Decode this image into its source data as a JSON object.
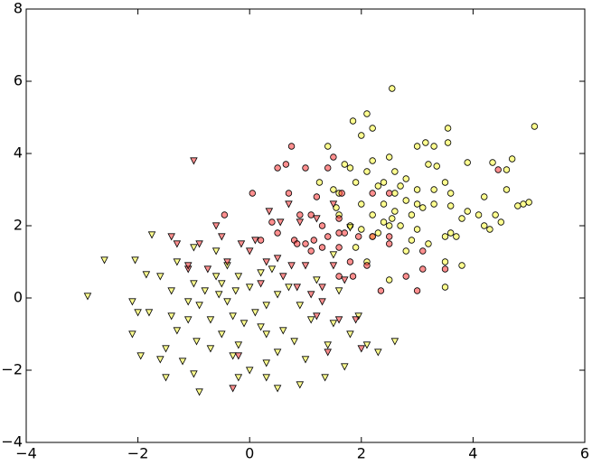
{
  "chart_data": {
    "type": "scatter",
    "xlim": [
      -4,
      6
    ],
    "ylim": [
      -4,
      8
    ],
    "xticks": [
      {
        "value": -4,
        "label": "−4"
      },
      {
        "value": -2,
        "label": "−2"
      },
      0,
      2,
      4,
      6
    ],
    "yticks": [
      {
        "value": -4,
        "label": "−4"
      },
      {
        "value": -2,
        "label": "−2"
      },
      0,
      2,
      4,
      6,
      8
    ],
    "series": [
      {
        "marker": "circle",
        "color": "#ffff33",
        "x": [
          2.55,
          5.1,
          2.1,
          1.85,
          2.0,
          2.2,
          3.55,
          1.4,
          3.0,
          3.15,
          3.3,
          3.55,
          4.35,
          4.7,
          3.9,
          4.6,
          1.7,
          1.8,
          2.2,
          2.5,
          2.1,
          2.6,
          3.2,
          3.35,
          3.5,
          1.25,
          1.5,
          1.6,
          1.9,
          2.3,
          2.4,
          2.8,
          3.0,
          3.3,
          3.6,
          3.9,
          4.1,
          4.2,
          4.6,
          4.9,
          4.8,
          5.0,
          4.5,
          4.4,
          3.8,
          3.6,
          3.3,
          3.1,
          2.9,
          2.6,
          2.4,
          2.2,
          2.5,
          2.7,
          2.3,
          2.0,
          1.8,
          1.6,
          1.55,
          2.8,
          3.0,
          2.9,
          3.2,
          3.5,
          3.8,
          3.5,
          3.6,
          2.5,
          3.5,
          2.1,
          2.2,
          3.0,
          4.2,
          3.7,
          2.6,
          2.7,
          2.0,
          2.4,
          2.55,
          2.8,
          1.9,
          4.3
        ],
        "y": [
          5.8,
          4.75,
          5.1,
          4.9,
          4.5,
          4.7,
          4.7,
          4.2,
          4.2,
          4.3,
          4.2,
          4.3,
          3.75,
          3.85,
          3.75,
          3.55,
          3.7,
          3.6,
          3.8,
          3.9,
          3.5,
          3.5,
          3.7,
          3.65,
          3.2,
          3.2,
          3.0,
          2.9,
          3.2,
          3.1,
          3.2,
          3.3,
          3.0,
          3.0,
          2.9,
          2.4,
          2.3,
          2.8,
          3.0,
          2.6,
          2.55,
          2.65,
          2.1,
          2.3,
          2.2,
          2.55,
          2.6,
          2.5,
          2.3,
          2.4,
          2.1,
          2.3,
          2.0,
          2.0,
          1.8,
          1.9,
          2.0,
          2.3,
          2.5,
          2.7,
          2.6,
          1.6,
          1.5,
          1.0,
          0.9,
          1.7,
          1.8,
          0.5,
          0.3,
          1.0,
          1.7,
          1.9,
          2.0,
          1.7,
          2.9,
          3.1,
          2.6,
          2.6,
          2.2,
          1.3,
          1.4,
          1.9
        ]
      },
      {
        "marker": "circle",
        "color": "#ff3333",
        "x": [
          0.75,
          0.65,
          0.5,
          1.0,
          1.5,
          1.4,
          0.05,
          0.7,
          1.2,
          1.65,
          2.2,
          2.5,
          0.9,
          1.1,
          0.4,
          1.3,
          1.6,
          1.4,
          0.2,
          0.5,
          0.8,
          0.85,
          1.15,
          1.6,
          1.7,
          1.95,
          2.5,
          2.2,
          -0.45,
          1.6,
          1.3,
          1.8,
          2.1,
          3.1,
          2.8,
          3.5,
          3.0,
          2.35,
          1.6,
          4.45,
          3.1,
          2.5,
          1.85,
          1.0,
          1.1
        ],
        "y": [
          4.2,
          3.7,
          3.6,
          3.6,
          3.9,
          3.6,
          2.9,
          2.9,
          2.8,
          2.9,
          2.9,
          2.9,
          2.3,
          2.3,
          2.1,
          2.0,
          2.2,
          1.7,
          1.6,
          1.8,
          1.6,
          1.5,
          1.6,
          1.8,
          1.8,
          1.7,
          1.7,
          1.7,
          2.3,
          1.4,
          1.4,
          1.0,
          0.9,
          0.8,
          0.6,
          0.8,
          0.2,
          0.2,
          0.6,
          3.55,
          1.3,
          1.5,
          0.6,
          1.5,
          1.3
        ]
      },
      {
        "marker": "triangle",
        "color": "#ffff33",
        "x": [
          -2.9,
          -2.6,
          -2.05,
          -1.75,
          -1.85,
          -1.6,
          -2.1,
          -2.0,
          -2.1,
          -1.95,
          -1.8,
          -1.5,
          -1.5,
          -1.2,
          -1.0,
          -0.9,
          -1.3,
          -1.1,
          -0.9,
          -0.8,
          -0.6,
          -0.5,
          -0.55,
          -0.4,
          -0.3,
          -0.1,
          0.1,
          0.3,
          0.5,
          0.7,
          0.9,
          1.1,
          0.8,
          0.5,
          0.3,
          0.0,
          -0.3,
          -0.5,
          -0.7,
          1.4,
          1.8,
          2.1,
          2.3,
          2.6,
          1.7,
          1.0,
          1.35,
          0.9,
          0.5,
          0.3,
          -0.2,
          -1.4,
          -1.0,
          -0.2,
          0.2,
          0.4,
          -0.4,
          -0.6,
          -1.0,
          -1.3,
          -1.4,
          -0.95,
          0.6,
          0.3,
          -0.2,
          1.6,
          1.95,
          1.5,
          -0.25,
          -0.7,
          0.0,
          0.2,
          -1.1,
          -1.6,
          1.2,
          1.8,
          1.5
        ],
        "y": [
          0.05,
          1.05,
          1.05,
          1.75,
          0.65,
          0.6,
          -0.1,
          -0.4,
          -1.0,
          -1.6,
          -0.4,
          -1.4,
          -2.2,
          -1.75,
          -2.1,
          -2.6,
          -0.9,
          -0.6,
          -0.2,
          0.2,
          0.6,
          0.4,
          0.1,
          -0.1,
          -0.5,
          -0.7,
          -0.4,
          -0.2,
          0.1,
          0.3,
          -0.2,
          -0.6,
          -1.2,
          -1.5,
          -1.8,
          -2.0,
          -1.6,
          -1.0,
          -1.4,
          -1.3,
          -1.0,
          -1.3,
          -1.5,
          -1.2,
          -1.9,
          -1.7,
          -2.2,
          -2.4,
          -2.5,
          -2.2,
          -2.2,
          -0.5,
          0.4,
          0.6,
          0.7,
          0.8,
          0.9,
          1.3,
          1.4,
          1.0,
          0.2,
          -1.2,
          -0.9,
          -1.0,
          -1.3,
          0.2,
          -0.5,
          -0.7,
          0.2,
          -0.6,
          0.3,
          -0.8,
          -0.1,
          -1.7,
          0.5,
          1.95,
          1.2
        ]
      },
      {
        "marker": "triangle",
        "color": "#ff3333",
        "x": [
          -1.0,
          -0.15,
          -0.6,
          -0.5,
          -0.9,
          -1.4,
          -1.3,
          -1.1,
          -1.1,
          -0.75,
          0.35,
          0.7,
          0.55,
          0.9,
          1.2,
          1.5,
          0.0,
          0.3,
          0.5,
          0.75,
          1.0,
          0.6,
          0.85,
          1.1,
          1.3,
          1.5,
          1.7,
          1.3,
          1.2,
          1.6,
          1.9,
          2.0,
          -0.3,
          -0.2,
          0.2,
          1.4,
          -0.4,
          0.1
        ],
        "y": [
          3.8,
          1.5,
          2.0,
          1.7,
          1.5,
          1.7,
          1.5,
          0.8,
          0.9,
          0.8,
          2.4,
          2.6,
          2.1,
          2.1,
          2.2,
          2.6,
          1.3,
          1.0,
          1.1,
          0.9,
          0.9,
          0.6,
          0.3,
          0.1,
          0.3,
          0.9,
          0.5,
          -0.1,
          -0.5,
          -0.6,
          -0.6,
          -1.4,
          -2.5,
          -1.6,
          0.4,
          -1.5,
          1.0,
          1.6
        ]
      }
    ]
  }
}
